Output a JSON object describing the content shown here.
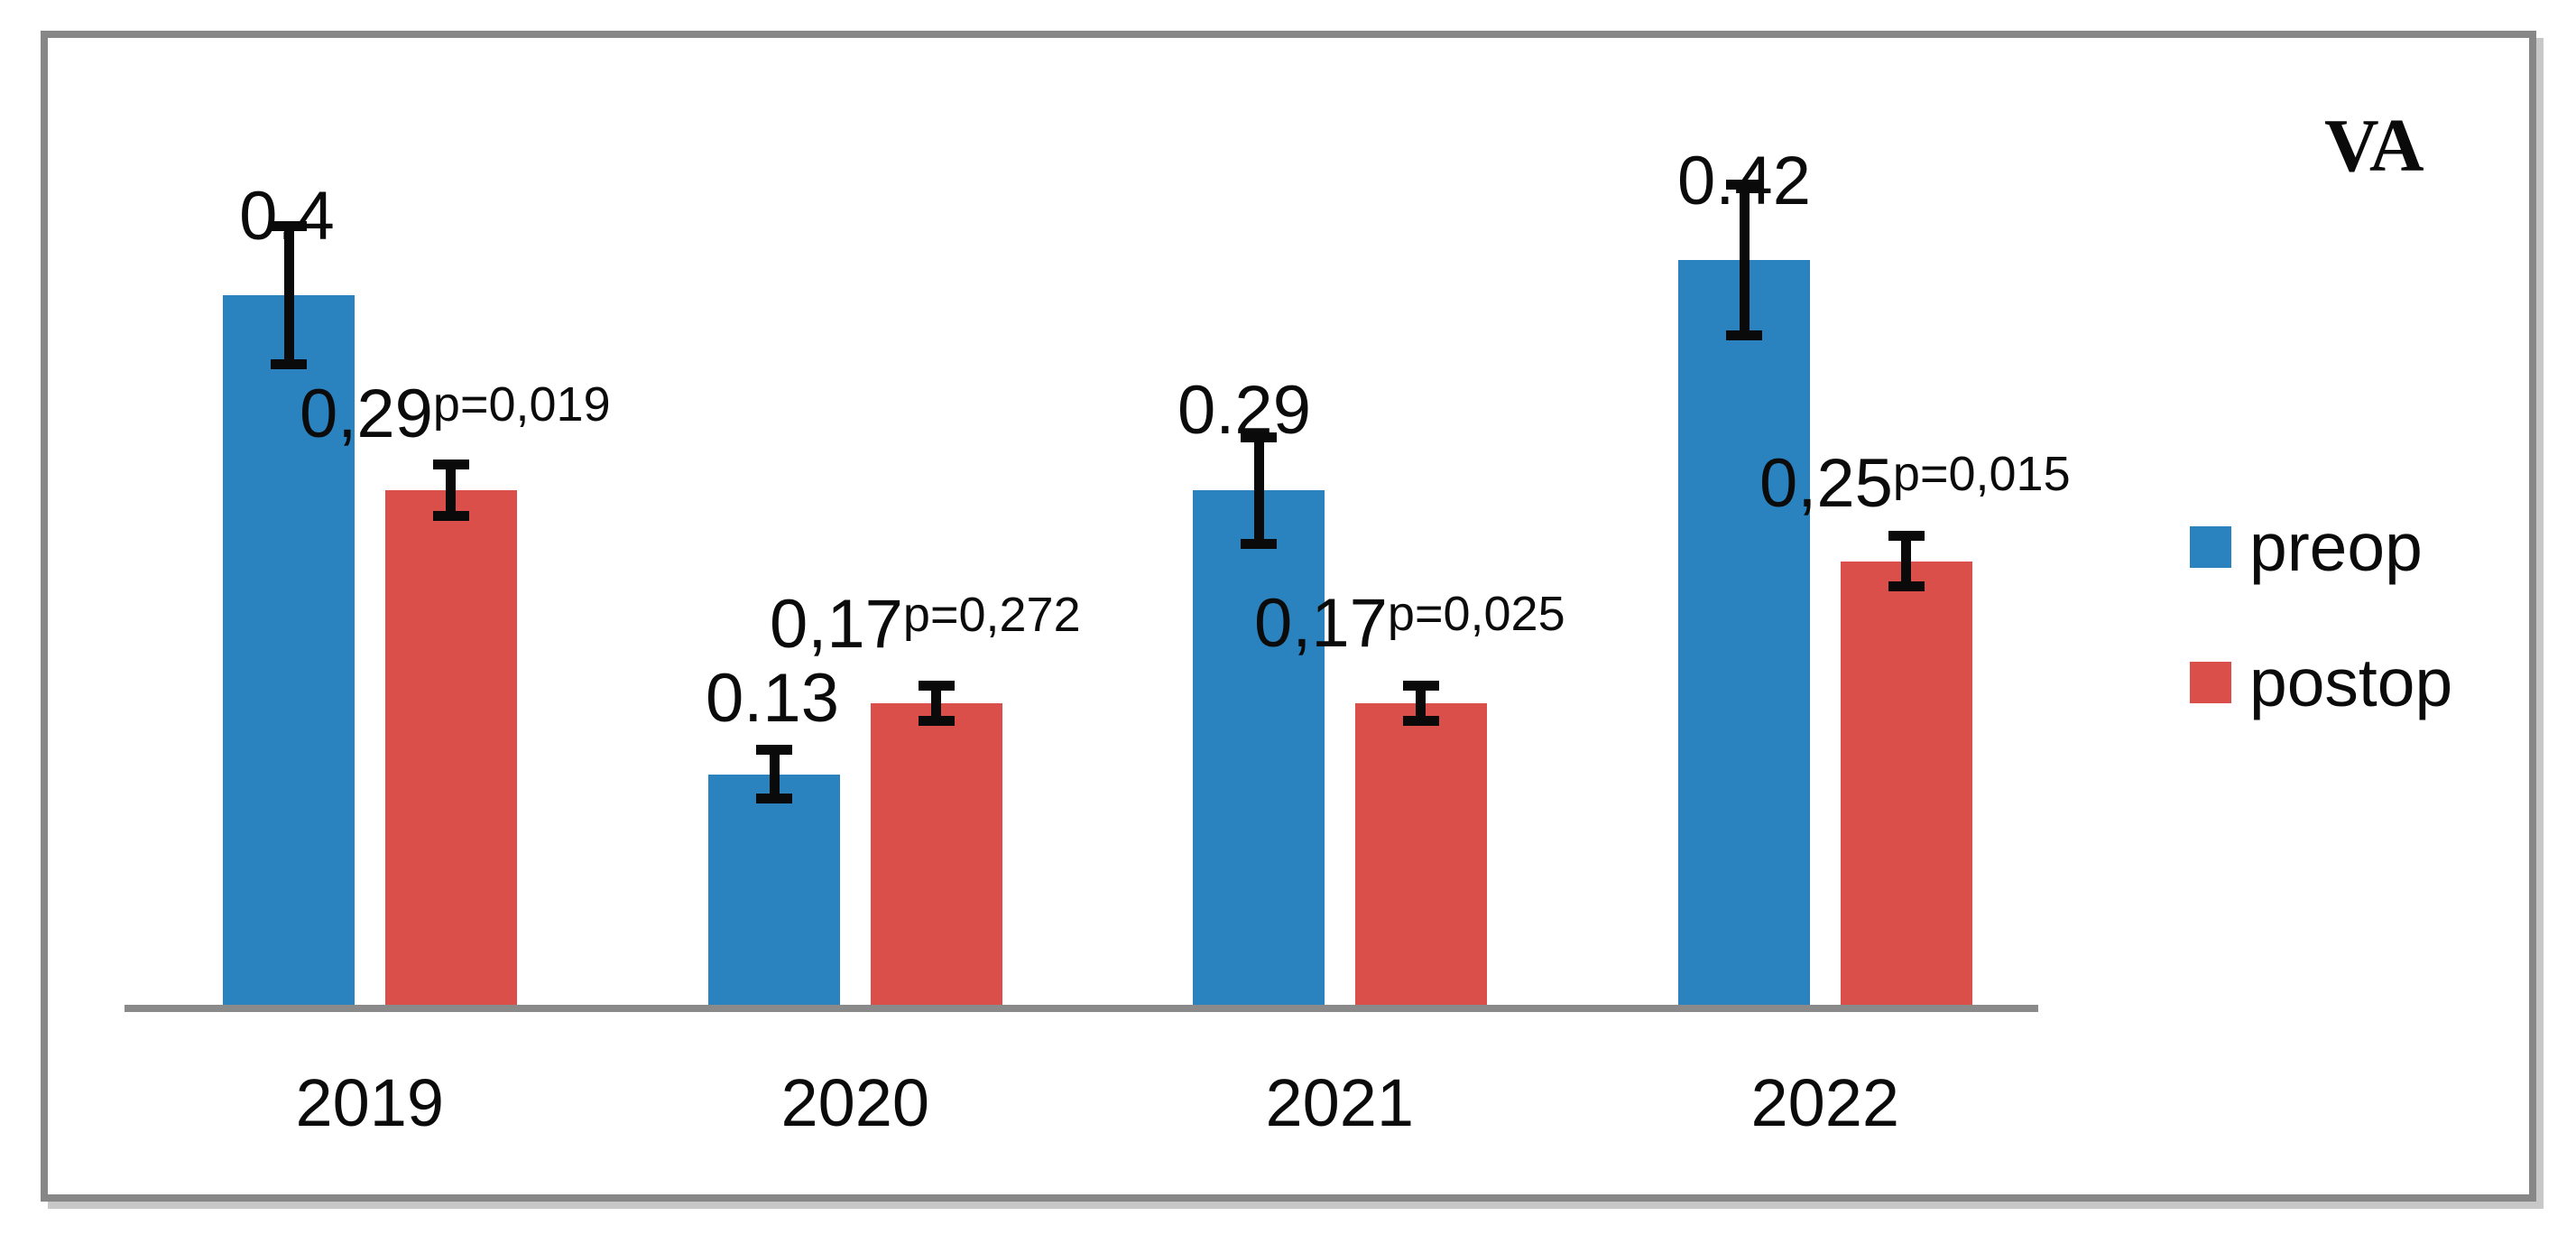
{
  "title": "VA",
  "chart_data": {
    "type": "bar",
    "title": "VA",
    "categories": [
      "2019",
      "2020",
      "2021",
      "2022"
    ],
    "series": [
      {
        "name": "preop",
        "color": "#2a82be",
        "values": [
          0.4,
          0.13,
          0.29,
          0.42
        ],
        "value_labels": [
          "0.4",
          "0.13",
          "0.29",
          "0.42"
        ],
        "errors": [
          0.039,
          0.0137,
          0.03,
          0.0425
        ]
      },
      {
        "name": "postop",
        "color": "#db4f4a",
        "values": [
          0.29,
          0.17,
          0.17,
          0.25
        ],
        "value_labels": [
          "0,29",
          "0,17",
          "0,17",
          "0,25"
        ],
        "errors": [
          0.0145,
          0.0097,
          0.01,
          0.0142
        ],
        "p_value_labels": [
          "p=0,019",
          "p=0,272",
          "p=0,025",
          "p=0,015"
        ]
      }
    ],
    "ylim": [
      0,
      0.55
    ],
    "y_axis_visible": false,
    "gridlines": false,
    "legend_position": "right",
    "error_bar_color": "#0a0a0a",
    "axis_color": "#8a8a8a",
    "frame_color": "#878787"
  }
}
